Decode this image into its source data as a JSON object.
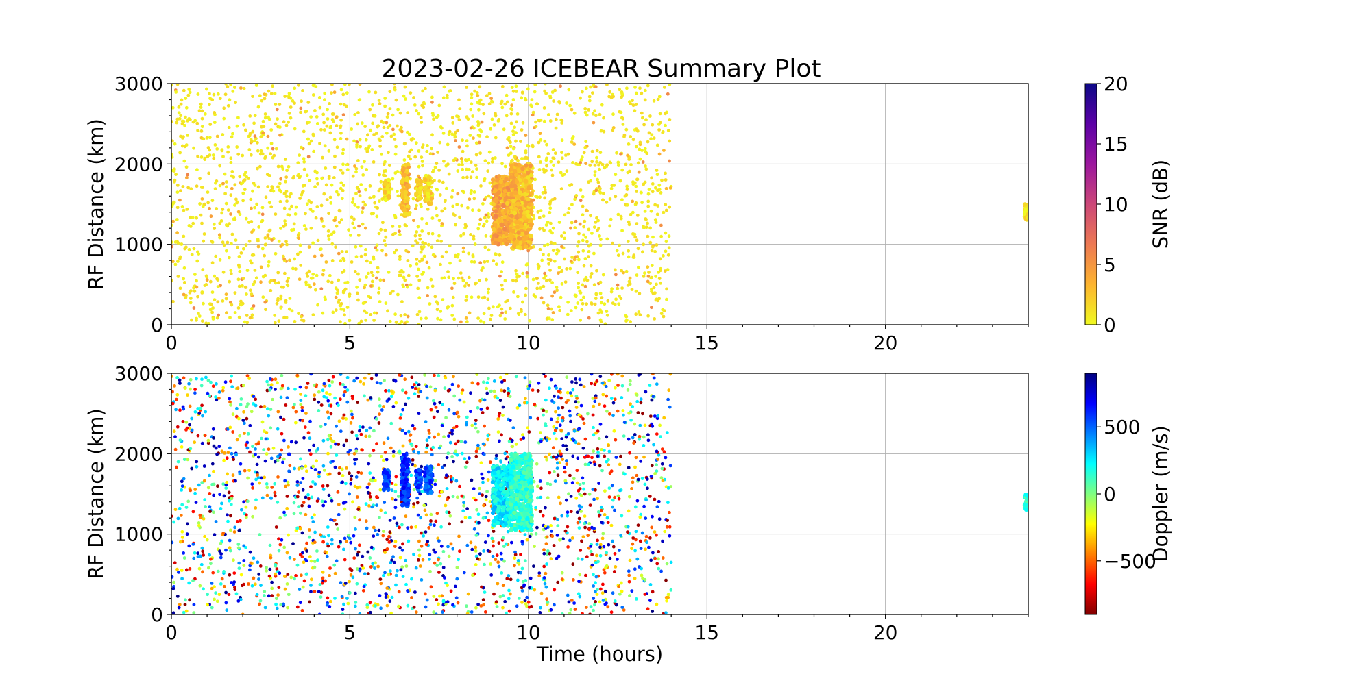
{
  "figure_title": "2023-02-26 ICEBEAR Summary Plot",
  "chart_data": [
    {
      "type": "scatter",
      "panel": "top",
      "ylabel": "RF Distance (km)",
      "xlabel": "",
      "xlim": [
        0,
        24
      ],
      "ylim": [
        0,
        3000
      ],
      "xticks": [
        "0",
        "5",
        "10",
        "15",
        "20"
      ],
      "yticks": [
        "0",
        "1000",
        "2000",
        "3000"
      ],
      "grid": true,
      "color_variable": "SNR (dB)",
      "colorbar": {
        "label": "SNR (dB)",
        "range": [
          0,
          20
        ],
        "ticks": [
          "0",
          "5",
          "10",
          "15",
          "20"
        ],
        "colormap": "plasma_r",
        "stops": [
          "#f0f921",
          "#fdb42f",
          "#ed7953",
          "#cc4778",
          "#9c179e",
          "#5c01a6",
          "#0d0887"
        ]
      },
      "scatter_background": {
        "time_range": [
          0,
          14
        ],
        "range_extent": [
          0,
          3000
        ],
        "typical_value": "0-3 dB"
      },
      "echo_regions": [
        {
          "t": [
            5.95,
            6.1
          ],
          "range": [
            1550,
            1800
          ],
          "value": 1.5
        },
        {
          "t": [
            6.45,
            6.65
          ],
          "range": [
            1350,
            2000
          ],
          "value": 3
        },
        {
          "t": [
            6.85,
            7.0
          ],
          "range": [
            1550,
            1800
          ],
          "value": 1.5
        },
        {
          "t": [
            7.1,
            7.3
          ],
          "range": [
            1500,
            1850
          ],
          "value": 1.5
        },
        {
          "t": [
            9.0,
            9.5
          ],
          "range": [
            1000,
            1850
          ],
          "value": 4
        },
        {
          "t": [
            9.5,
            10.1
          ],
          "range": [
            950,
            2000
          ],
          "value": 3
        },
        {
          "t": [
            23.9,
            24.0
          ],
          "range": [
            1300,
            1500
          ],
          "value": 1
        }
      ]
    },
    {
      "type": "scatter",
      "panel": "bottom",
      "ylabel": "RF Distance (km)",
      "xlabel": "Time (hours)",
      "xlim": [
        0,
        24
      ],
      "ylim": [
        0,
        3000
      ],
      "xticks": [
        "0",
        "5",
        "10",
        "15",
        "20"
      ],
      "yticks": [
        "0",
        "1000",
        "2000",
        "3000"
      ],
      "grid": true,
      "color_variable": "Doppler (m/s)",
      "colorbar": {
        "label": "Doppler (m/s)",
        "range": [
          -900,
          900
        ],
        "ticks": [
          "−500",
          "0",
          "500"
        ],
        "tick_values": [
          -500,
          0,
          500
        ],
        "colormap": "jet_r",
        "stops": [
          "#800000",
          "#ff0000",
          "#ff8000",
          "#ffff00",
          "#80ff80",
          "#00ffff",
          "#0080ff",
          "#0000ff",
          "#000080"
        ]
      },
      "scatter_background": {
        "time_range": [
          0,
          14
        ],
        "range_extent": [
          0,
          3000
        ],
        "typical_value": "−900 to 900 m/s (mixed)"
      },
      "echo_regions": [
        {
          "t": [
            5.95,
            6.1
          ],
          "range": [
            1550,
            1800
          ],
          "value": 550
        },
        {
          "t": [
            6.45,
            6.65
          ],
          "range": [
            1350,
            2000
          ],
          "value": 600
        },
        {
          "t": [
            6.85,
            7.0
          ],
          "range": [
            1550,
            1800
          ],
          "value": 550
        },
        {
          "t": [
            7.1,
            7.3
          ],
          "range": [
            1500,
            1850
          ],
          "value": 550
        },
        {
          "t": [
            9.0,
            9.5
          ],
          "range": [
            1100,
            1850
          ],
          "value": 250
        },
        {
          "t": [
            9.5,
            10.1
          ],
          "range": [
            1050,
            2000
          ],
          "value": 150
        },
        {
          "t": [
            23.9,
            24.0
          ],
          "range": [
            1300,
            1500
          ],
          "value": 100
        }
      ]
    }
  ]
}
